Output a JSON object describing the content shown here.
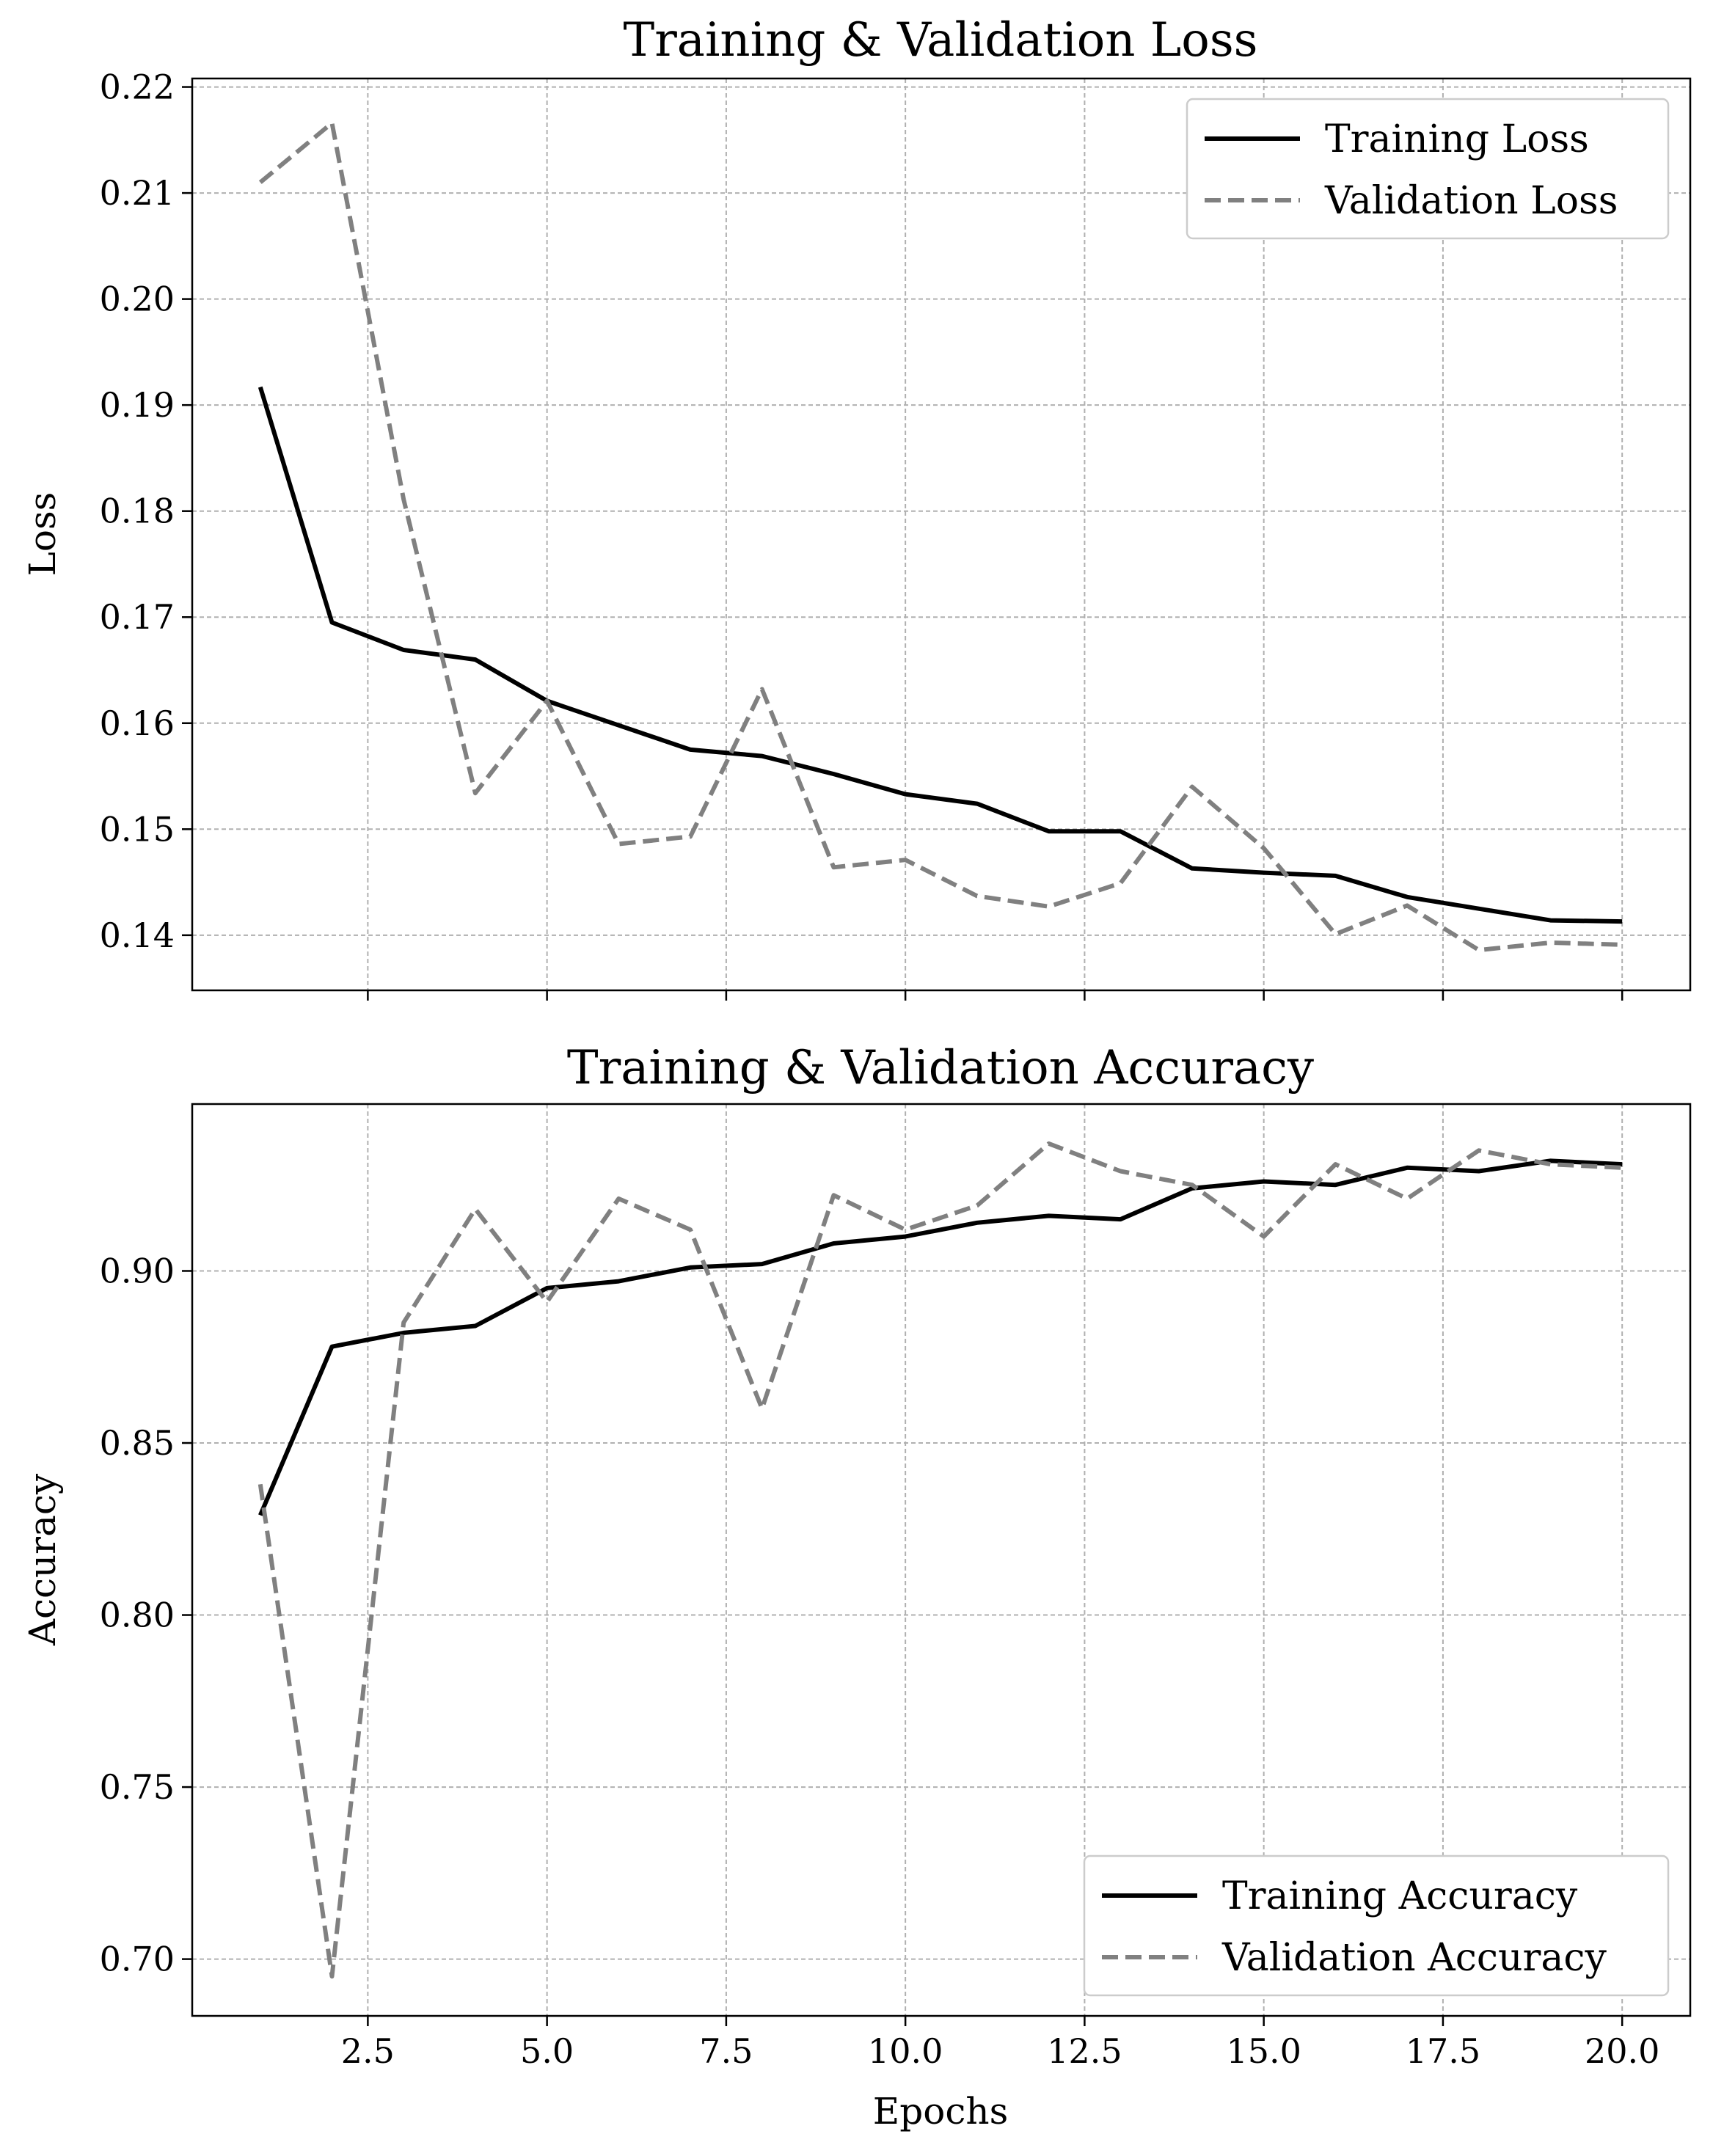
{
  "chart_data": [
    {
      "type": "line",
      "title": "Training & Validation Loss",
      "xlabel": "",
      "ylabel": "Loss",
      "x": [
        1,
        2,
        3,
        4,
        5,
        6,
        7,
        8,
        9,
        10,
        11,
        12,
        13,
        14,
        15,
        16,
        17,
        18,
        19,
        20
      ],
      "xlim": [
        0.05,
        20.95
      ],
      "ylim": [
        0.1348,
        0.2208
      ],
      "xticks": [
        2.5,
        5.0,
        7.5,
        10.0,
        12.5,
        15.0,
        17.5,
        20.0
      ],
      "xtick_labels_visible": false,
      "yticks": [
        0.14,
        0.15,
        0.16,
        0.17,
        0.18,
        0.19,
        0.2,
        0.21,
        0.22
      ],
      "ytick_labels": [
        "0.14",
        "0.15",
        "0.16",
        "0.17",
        "0.18",
        "0.19",
        "0.20",
        "0.21",
        "0.22"
      ],
      "grid": true,
      "legend_position": "top-right",
      "series": [
        {
          "name": "Training Loss",
          "color": "#000000",
          "style": "solid",
          "values": [
            0.1917,
            0.1695,
            0.1669,
            0.166,
            0.1621,
            0.1598,
            0.1575,
            0.1569,
            0.1552,
            0.1533,
            0.1524,
            0.1498,
            0.1498,
            0.1463,
            0.1459,
            0.1456,
            0.1436,
            0.1425,
            0.1414,
            0.1413
          ]
        },
        {
          "name": "Validation Loss",
          "color": "#808080",
          "style": "dashed",
          "values": [
            0.211,
            0.2166,
            0.1811,
            0.1534,
            0.1621,
            0.1486,
            0.1493,
            0.1632,
            0.1464,
            0.1471,
            0.1437,
            0.1427,
            0.1449,
            0.154,
            0.1482,
            0.1401,
            0.1428,
            0.1386,
            0.1393,
            0.1391
          ]
        }
      ]
    },
    {
      "type": "line",
      "title": "Training & Validation Accuracy",
      "xlabel": "Epochs",
      "ylabel": "Accuracy",
      "x": [
        1,
        2,
        3,
        4,
        5,
        6,
        7,
        8,
        9,
        10,
        11,
        12,
        13,
        14,
        15,
        16,
        17,
        18,
        19,
        20
      ],
      "xlim": [
        0.05,
        20.95
      ],
      "ylim": [
        0.6835,
        0.9485
      ],
      "xticks": [
        2.5,
        5.0,
        7.5,
        10.0,
        12.5,
        15.0,
        17.5,
        20.0
      ],
      "xtick_labels": [
        "2.5",
        "5.0",
        "7.5",
        "10.0",
        "12.5",
        "15.0",
        "17.5",
        "20.0"
      ],
      "xtick_labels_visible": true,
      "yticks": [
        0.7,
        0.75,
        0.8,
        0.85,
        0.9
      ],
      "ytick_labels": [
        "0.70",
        "0.75",
        "0.80",
        "0.85",
        "0.90"
      ],
      "grid": true,
      "legend_position": "bottom-right",
      "series": [
        {
          "name": "Training Accuracy",
          "color": "#000000",
          "style": "solid",
          "values": [
            0.829,
            0.878,
            0.882,
            0.884,
            0.895,
            0.897,
            0.901,
            0.902,
            0.908,
            0.91,
            0.914,
            0.916,
            0.915,
            0.924,
            0.926,
            0.925,
            0.93,
            0.929,
            0.932,
            0.931
          ]
        },
        {
          "name": "Validation Accuracy",
          "color": "#808080",
          "style": "dashed",
          "values": [
            0.838,
            0.695,
            0.885,
            0.918,
            0.891,
            0.921,
            0.912,
            0.86,
            0.922,
            0.912,
            0.919,
            0.937,
            0.929,
            0.925,
            0.91,
            0.931,
            0.921,
            0.935,
            0.931,
            0.93
          ]
        }
      ]
    }
  ]
}
